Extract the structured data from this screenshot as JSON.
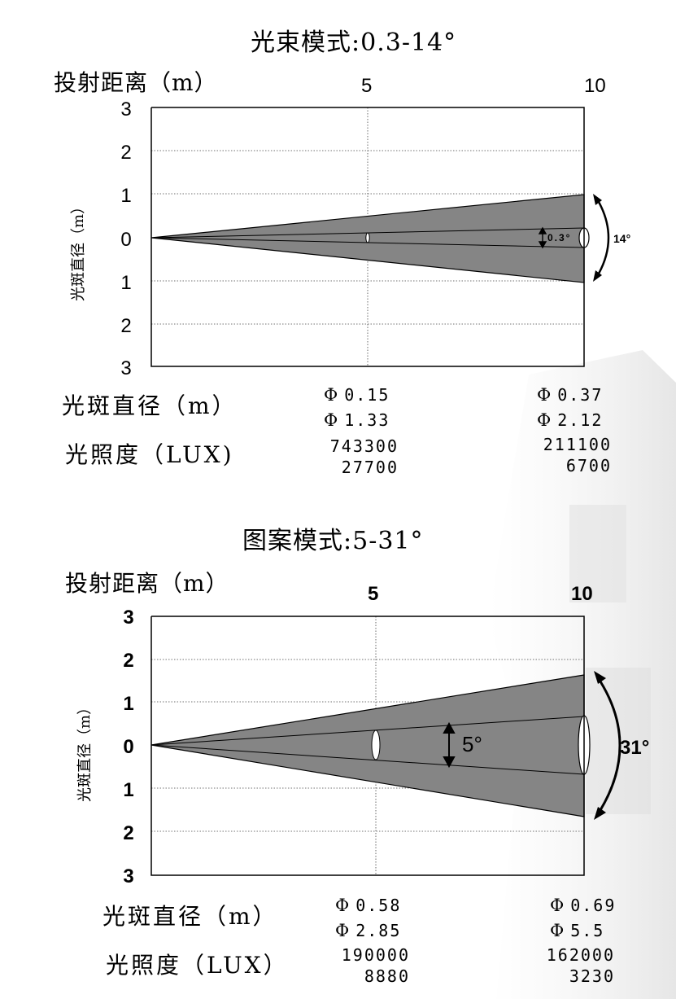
{
  "diagrams": [
    {
      "title": "光束模式:0.3-14°",
      "distance_label": "投射距离（m）",
      "diameter_axis_label": "光斑直径（m）",
      "x_ticks": [
        "5",
        "10"
      ],
      "y_ticks": [
        "3",
        "2",
        "1",
        "0",
        "1",
        "2",
        "3"
      ],
      "inner_angle_label": "0.3°",
      "outer_angle_label": "14°",
      "rows": {
        "diameter_label": "光斑直径（m）",
        "lux_label": "光照度（LUX)",
        "phi": "Φ",
        "at5": {
          "d_min": "0.15",
          "d_max": "1.33",
          "lux_max": "743300",
          "lux_min": "27700"
        },
        "at10": {
          "d_min": "0.37",
          "d_max": "2.12",
          "lux_max": "211100",
          "lux_min": "6700"
        }
      }
    },
    {
      "title": "图案模式:5-31°",
      "distance_label": "投射距离（m）",
      "diameter_axis_label": "光斑直径（m）",
      "x_ticks": [
        "5",
        "10"
      ],
      "y_ticks": [
        "3",
        "2",
        "1",
        "0",
        "1",
        "2",
        "3"
      ],
      "inner_angle_label": "5°",
      "outer_angle_label": "31°",
      "rows": {
        "diameter_label": "光斑直径（m）",
        "lux_label": "光照度（LUX）",
        "phi": "Φ",
        "at5": {
          "d_min": "0.58",
          "d_max": "2.85",
          "lux_max": "190000",
          "lux_min": "8880"
        },
        "at10": {
          "d_min": "0.69",
          "d_max": "5.5",
          "lux_max": "162000",
          "lux_min": "3230"
        }
      }
    }
  ],
  "chart_data": [
    {
      "type": "area",
      "title": "光束模式:0.3-14°",
      "xlabel": "投射距离（m）",
      "ylabel": "光斑直径（m）",
      "xlim": [
        0,
        10
      ],
      "ylim": [
        -3,
        3
      ],
      "grid": true,
      "x": [
        0,
        10
      ],
      "series": [
        {
          "name": "14°",
          "y_upper": [
            0,
            1.0
          ],
          "y_lower": [
            0,
            -1.0
          ]
        },
        {
          "name": "0.3°",
          "y_upper": [
            0,
            0.22
          ],
          "y_lower": [
            0,
            -0.22
          ]
        }
      ]
    },
    {
      "type": "area",
      "title": "图案模式:5-31°",
      "xlabel": "投射距离（m）",
      "ylabel": "光斑直径（m）",
      "xlim": [
        0,
        10
      ],
      "ylim": [
        -3,
        3
      ],
      "grid": true,
      "x": [
        0,
        10
      ],
      "series": [
        {
          "name": "31°",
          "y_upper": [
            0,
            1.62
          ],
          "y_lower": [
            0,
            -1.62
          ]
        },
        {
          "name": "5°",
          "y_upper": [
            0,
            0.65
          ],
          "y_lower": [
            0,
            -0.65
          ]
        }
      ]
    }
  ]
}
